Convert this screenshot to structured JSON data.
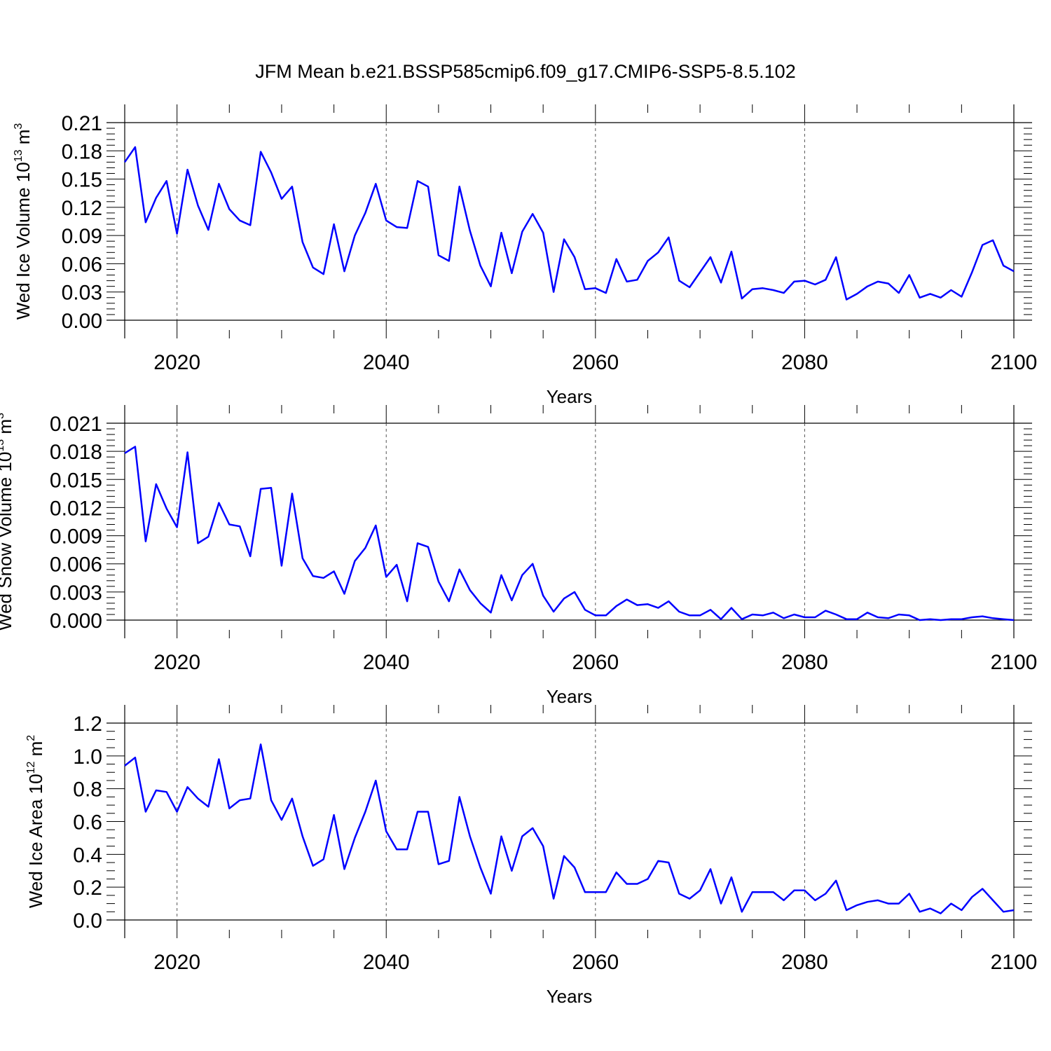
{
  "title": "JFM Mean b.e21.BSSP585cmip6.f09_g17.CMIP6-SSP5-8.5.102",
  "colors": {
    "line": "#0000ff",
    "axis": "#000000",
    "grid": "#000000"
  },
  "chart_data": [
    {
      "type": "line",
      "ylabel": {
        "text": "Wed Ice Volume 10",
        "sup": "13",
        "unit": " m",
        "unit_sup": "3"
      },
      "xlabel": "Years",
      "xlim": [
        2015,
        2100
      ],
      "ylim": [
        0,
        0.21
      ],
      "xticks": [
        2020,
        2040,
        2060,
        2080,
        2100
      ],
      "yticks": [
        0.0,
        0.03,
        0.06,
        0.09,
        0.12,
        0.15,
        0.18,
        0.21
      ],
      "ytick_labels": [
        "0.00",
        "0.03",
        "0.06",
        "0.09",
        "0.12",
        "0.15",
        "0.18",
        "0.21"
      ],
      "grid": "dashed vertical at major x ticks",
      "x_start": 2015,
      "values": [
        0.168,
        0.184,
        0.104,
        0.13,
        0.148,
        0.092,
        0.16,
        0.122,
        0.096,
        0.145,
        0.118,
        0.106,
        0.101,
        0.179,
        0.157,
        0.129,
        0.142,
        0.083,
        0.056,
        0.049,
        0.102,
        0.052,
        0.09,
        0.114,
        0.145,
        0.106,
        0.099,
        0.098,
        0.148,
        0.142,
        0.069,
        0.063,
        0.142,
        0.095,
        0.058,
        0.036,
        0.093,
        0.05,
        0.094,
        0.113,
        0.093,
        0.03,
        0.086,
        0.067,
        0.033,
        0.034,
        0.029,
        0.065,
        0.041,
        0.043,
        0.063,
        0.072,
        0.088,
        0.042,
        0.035,
        0.051,
        0.067,
        0.04,
        0.073,
        0.023,
        0.033,
        0.034,
        0.032,
        0.029,
        0.041,
        0.042,
        0.038,
        0.043,
        0.067,
        0.022,
        0.028,
        0.036,
        0.041,
        0.039,
        0.029,
        0.048,
        0.024,
        0.028,
        0.024,
        0.032,
        0.025,
        0.051,
        0.08,
        0.085,
        0.058,
        0.052
      ]
    },
    {
      "type": "line",
      "ylabel": {
        "text": "Wed Snow Volume 10",
        "sup": "13",
        "unit": " m",
        "unit_sup": "3"
      },
      "xlabel": "Years",
      "xlim": [
        2015,
        2100
      ],
      "ylim": [
        0,
        0.021
      ],
      "xticks": [
        2020,
        2040,
        2060,
        2080,
        2100
      ],
      "yticks": [
        0.0,
        0.003,
        0.006,
        0.009,
        0.012,
        0.015,
        0.018,
        0.021
      ],
      "ytick_labels": [
        "0.000",
        "0.003",
        "0.006",
        "0.009",
        "0.012",
        "0.015",
        "0.018",
        "0.021"
      ],
      "grid": "dashed vertical at major x ticks",
      "x_start": 2015,
      "values": [
        0.0178,
        0.0185,
        0.0084,
        0.0145,
        0.0119,
        0.0099,
        0.0179,
        0.0082,
        0.0089,
        0.0125,
        0.0102,
        0.01,
        0.0068,
        0.014,
        0.0141,
        0.0058,
        0.0135,
        0.0066,
        0.0047,
        0.0045,
        0.0052,
        0.0028,
        0.0063,
        0.0077,
        0.0101,
        0.0046,
        0.0059,
        0.002,
        0.0082,
        0.0078,
        0.0041,
        0.002,
        0.0054,
        0.0032,
        0.0018,
        0.0008,
        0.0048,
        0.0021,
        0.0048,
        0.006,
        0.0026,
        0.0009,
        0.0023,
        0.003,
        0.0011,
        0.0005,
        0.0005,
        0.0015,
        0.0022,
        0.0016,
        0.0017,
        0.0013,
        0.002,
        0.0009,
        0.0005,
        0.0005,
        0.0011,
        0.0001,
        0.0013,
        0.0001,
        0.0006,
        0.0005,
        0.0008,
        0.0002,
        0.0006,
        0.0003,
        0.0003,
        0.001,
        0.0006,
        0.0001,
        0.0001,
        0.0008,
        0.0003,
        0.0002,
        0.0006,
        0.0005,
        0.0,
        0.0001,
        0.0,
        0.0001,
        0.0001,
        0.0003,
        0.0004,
        0.0002,
        0.0001,
        0.0
      ]
    },
    {
      "type": "line",
      "ylabel": {
        "text": "Wed Ice Area 10",
        "sup": "12",
        "unit": " m",
        "unit_sup": "2"
      },
      "xlabel": "Years",
      "xlim": [
        2015,
        2100
      ],
      "ylim": [
        0,
        1.2
      ],
      "xticks": [
        2020,
        2040,
        2060,
        2080,
        2100
      ],
      "yticks": [
        0.0,
        0.2,
        0.4,
        0.6,
        0.8,
        1.0,
        1.2
      ],
      "ytick_labels": [
        "0.0",
        "0.2",
        "0.4",
        "0.6",
        "0.8",
        "1.0",
        "1.2"
      ],
      "grid": "dashed vertical at major x ticks",
      "x_start": 2015,
      "values": [
        0.94,
        0.99,
        0.66,
        0.79,
        0.78,
        0.66,
        0.81,
        0.74,
        0.69,
        0.98,
        0.68,
        0.73,
        0.74,
        1.07,
        0.73,
        0.61,
        0.74,
        0.51,
        0.33,
        0.37,
        0.64,
        0.31,
        0.5,
        0.66,
        0.85,
        0.54,
        0.43,
        0.43,
        0.66,
        0.66,
        0.34,
        0.36,
        0.75,
        0.51,
        0.32,
        0.16,
        0.51,
        0.3,
        0.51,
        0.56,
        0.45,
        0.13,
        0.39,
        0.32,
        0.17,
        0.17,
        0.17,
        0.29,
        0.22,
        0.22,
        0.25,
        0.36,
        0.35,
        0.16,
        0.13,
        0.18,
        0.31,
        0.1,
        0.26,
        0.05,
        0.17,
        0.17,
        0.17,
        0.12,
        0.18,
        0.18,
        0.12,
        0.16,
        0.24,
        0.06,
        0.09,
        0.11,
        0.12,
        0.1,
        0.1,
        0.16,
        0.05,
        0.07,
        0.04,
        0.1,
        0.06,
        0.14,
        0.19,
        0.12,
        0.05,
        0.06
      ]
    }
  ]
}
